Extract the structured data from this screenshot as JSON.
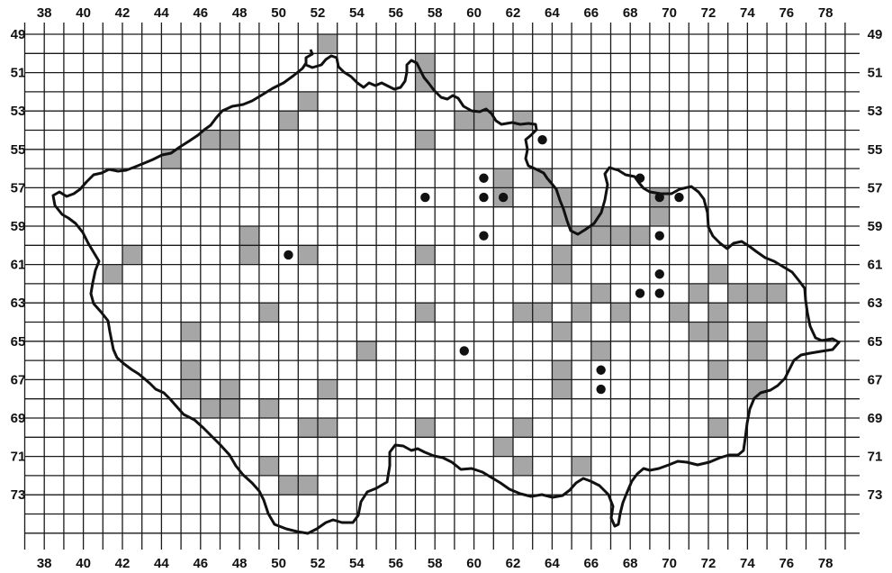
{
  "x_labels": [
    "38",
    "40",
    "42",
    "44",
    "46",
    "48",
    "50",
    "52",
    "54",
    "56",
    "58",
    "60",
    "62",
    "64",
    "66",
    "68",
    "70",
    "72",
    "74",
    "76",
    "78"
  ],
  "y_labels": [
    "49",
    "51",
    "53",
    "55",
    "57",
    "59",
    "61",
    "63",
    "65",
    "67",
    "69",
    "71",
    "73"
  ],
  "colors": {
    "grid": "#1a1a1a",
    "fill": "#a6a6a6",
    "border": "#111111",
    "dot": "#111111"
  },
  "shaded_cells": [
    [
      52,
      49
    ],
    [
      57,
      50
    ],
    [
      57,
      51
    ],
    [
      51,
      52
    ],
    [
      60,
      52
    ],
    [
      50,
      53
    ],
    [
      59,
      53
    ],
    [
      60,
      53
    ],
    [
      62,
      53
    ],
    [
      46,
      54
    ],
    [
      47,
      54
    ],
    [
      57,
      54
    ],
    [
      44,
      55
    ],
    [
      61,
      56
    ],
    [
      63,
      56
    ],
    [
      61,
      57
    ],
    [
      64,
      57
    ],
    [
      69,
      57
    ],
    [
      64,
      58
    ],
    [
      66,
      58
    ],
    [
      69,
      58
    ],
    [
      48,
      59
    ],
    [
      65,
      59
    ],
    [
      66,
      59
    ],
    [
      67,
      59
    ],
    [
      68,
      59
    ],
    [
      42,
      60
    ],
    [
      48,
      60
    ],
    [
      51,
      60
    ],
    [
      57,
      60
    ],
    [
      64,
      60
    ],
    [
      41,
      61
    ],
    [
      64,
      61
    ],
    [
      72,
      61
    ],
    [
      66,
      62
    ],
    [
      71,
      62
    ],
    [
      73,
      62
    ],
    [
      74,
      62
    ],
    [
      75,
      62
    ],
    [
      49,
      63
    ],
    [
      57,
      63
    ],
    [
      62,
      63
    ],
    [
      63,
      63
    ],
    [
      65,
      63
    ],
    [
      67,
      63
    ],
    [
      70,
      63
    ],
    [
      72,
      63
    ],
    [
      45,
      64
    ],
    [
      64,
      64
    ],
    [
      71,
      64
    ],
    [
      72,
      64
    ],
    [
      74,
      64
    ],
    [
      54,
      65
    ],
    [
      66,
      65
    ],
    [
      74,
      65
    ],
    [
      45,
      66
    ],
    [
      64,
      66
    ],
    [
      72,
      66
    ],
    [
      45,
      67
    ],
    [
      47,
      67
    ],
    [
      52,
      67
    ],
    [
      64,
      67
    ],
    [
      74,
      67
    ],
    [
      46,
      68
    ],
    [
      47,
      68
    ],
    [
      49,
      68
    ],
    [
      51,
      69
    ],
    [
      52,
      69
    ],
    [
      57,
      69
    ],
    [
      62,
      69
    ],
    [
      72,
      69
    ],
    [
      61,
      70
    ],
    [
      49,
      71
    ],
    [
      62,
      71
    ],
    [
      65,
      71
    ],
    [
      50,
      72
    ],
    [
      51,
      72
    ]
  ],
  "dots": [
    [
      63,
      54
    ],
    [
      60,
      56
    ],
    [
      68,
      56
    ],
    [
      57,
      57
    ],
    [
      60,
      57
    ],
    [
      61,
      57
    ],
    [
      69,
      57
    ],
    [
      70,
      57
    ],
    [
      60,
      59
    ],
    [
      69,
      59
    ],
    [
      50,
      60
    ],
    [
      69,
      61
    ],
    [
      68,
      62
    ],
    [
      69,
      62
    ],
    [
      59,
      65
    ],
    [
      66,
      66
    ],
    [
      66,
      67
    ]
  ]
}
